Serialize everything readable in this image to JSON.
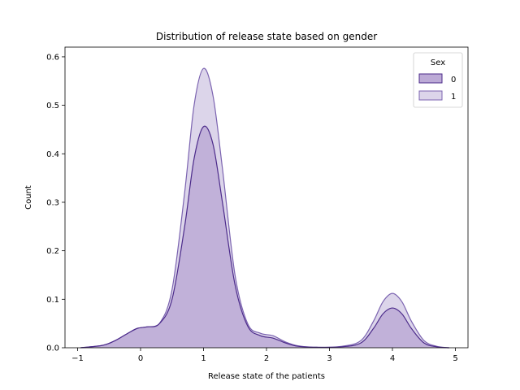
{
  "chart_data": {
    "type": "area",
    "title": "Distribution of release state based on gender",
    "xlabel": "Release state of the patients",
    "ylabel": "Count",
    "xlim": [
      -1.2,
      5.2
    ],
    "ylim": [
      0,
      0.62
    ],
    "xticks": [
      -1,
      0,
      1,
      2,
      3,
      4,
      5
    ],
    "yticks": [
      0.0,
      0.1,
      0.2,
      0.3,
      0.4,
      0.5,
      0.6
    ],
    "grid": false,
    "legend": {
      "title": "Sex",
      "position": "top-right"
    },
    "series": [
      {
        "name": "0",
        "fill_color": "#bcaad6",
        "line_color": "#4b2a8a",
        "x": [
          -0.95,
          -0.6,
          -0.4,
          -0.2,
          -0.05,
          0.1,
          0.3,
          0.5,
          0.7,
          0.85,
          1.0,
          1.15,
          1.3,
          1.5,
          1.7,
          1.9,
          2.1,
          2.3,
          2.5,
          2.8,
          3.2,
          3.5,
          3.7,
          3.85,
          4.0,
          4.15,
          4.3,
          4.5,
          4.7,
          4.9
        ],
        "y": [
          0.0,
          0.005,
          0.015,
          0.03,
          0.04,
          0.043,
          0.05,
          0.1,
          0.25,
          0.39,
          0.456,
          0.42,
          0.3,
          0.13,
          0.045,
          0.025,
          0.02,
          0.01,
          0.003,
          0.001,
          0.002,
          0.01,
          0.04,
          0.07,
          0.082,
          0.07,
          0.04,
          0.01,
          0.002,
          0.0
        ]
      },
      {
        "name": "1",
        "fill_color": "#dcd5ea",
        "line_color": "#7b63b0",
        "x": [
          -0.95,
          -0.6,
          -0.4,
          -0.2,
          -0.05,
          0.1,
          0.3,
          0.5,
          0.7,
          0.85,
          1.0,
          1.15,
          1.3,
          1.5,
          1.7,
          1.9,
          2.1,
          2.3,
          2.5,
          2.8,
          3.2,
          3.5,
          3.7,
          3.85,
          4.0,
          4.15,
          4.3,
          4.5,
          4.7,
          4.9
        ],
        "y": [
          0.0,
          0.005,
          0.015,
          0.03,
          0.04,
          0.043,
          0.05,
          0.12,
          0.32,
          0.5,
          0.576,
          0.52,
          0.37,
          0.15,
          0.05,
          0.03,
          0.025,
          0.012,
          0.004,
          0.001,
          0.003,
          0.015,
          0.055,
          0.095,
          0.112,
          0.095,
          0.055,
          0.015,
          0.003,
          0.0
        ]
      }
    ]
  }
}
